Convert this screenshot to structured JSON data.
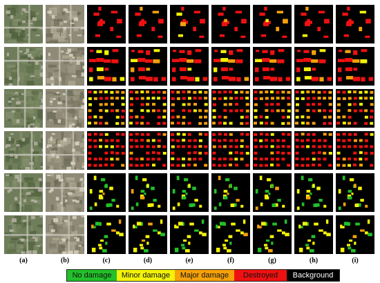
{
  "column_labels": [
    "(a)",
    "(b)",
    "(c)",
    "(d)",
    "(e)",
    "(f)",
    "(g)",
    "(h)",
    "(i)"
  ],
  "legend": [
    {
      "label": "No damage",
      "color": "#22c02a",
      "text_color": "#111111"
    },
    {
      "label": "Minor damage",
      "color": "#f2f20a",
      "text_color": "#111111"
    },
    {
      "label": "Major damage",
      "color": "#f5a10a",
      "text_color": "#111111"
    },
    {
      "label": "Destroyed",
      "color": "#ee1111",
      "text_color": "#111111"
    },
    {
      "label": "Background",
      "color": "#000000",
      "text_color": "#ffffff"
    }
  ],
  "rows": [
    {
      "kind": "sparse",
      "base_color": "#ee1111"
    },
    {
      "kind": "commercial",
      "base_color": "#ee1111"
    },
    {
      "kind": "dense",
      "base_color": "#f5a10a"
    },
    {
      "kind": "dense",
      "base_color": "#ee1111"
    },
    {
      "kind": "scattered",
      "base_color": "#22c02a"
    },
    {
      "kind": "scattered",
      "base_color": "#f2f20a"
    }
  ]
}
